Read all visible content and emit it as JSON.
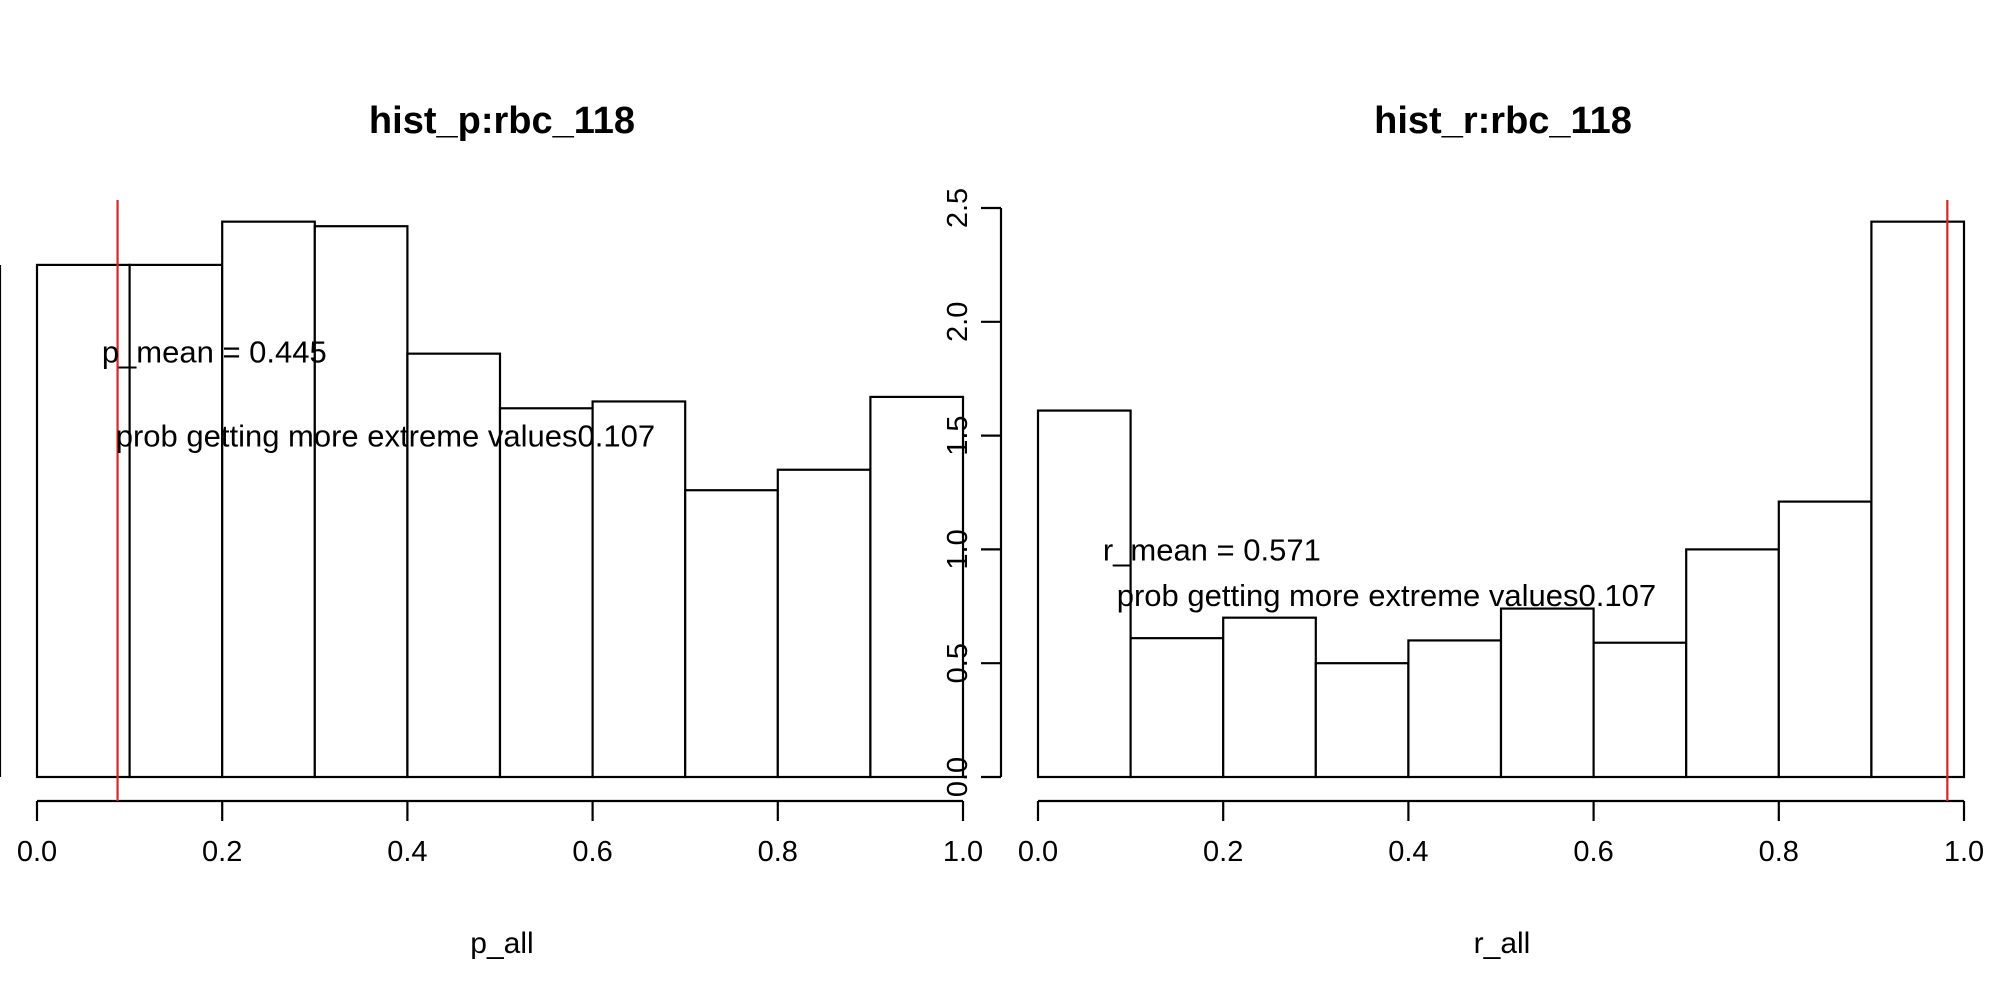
{
  "chart_data": [
    {
      "type": "bar",
      "title": "hist_p:rbc_118",
      "xlabel": "p_all",
      "ylabel": "",
      "xlim": [
        0,
        1
      ],
      "ylim": [
        0,
        2.5
      ],
      "x_ticks": [
        "0.0",
        "0.2",
        "0.4",
        "0.6",
        "0.8",
        "1.0"
      ],
      "y_ticks": [],
      "bins": [
        [
          0.0,
          0.1
        ],
        [
          0.1,
          0.2
        ],
        [
          0.2,
          0.3
        ],
        [
          0.3,
          0.4
        ],
        [
          0.4,
          0.5
        ],
        [
          0.5,
          0.6
        ],
        [
          0.6,
          0.7
        ],
        [
          0.7,
          0.8
        ],
        [
          0.8,
          0.9
        ],
        [
          0.9,
          1.0
        ]
      ],
      "values": [
        2.25,
        2.25,
        2.44,
        2.42,
        1.86,
        1.62,
        1.65,
        1.26,
        1.35,
        1.67
      ],
      "reference_line": {
        "x": 0.087,
        "color": "#d62728"
      },
      "annotations": [
        {
          "text": "p_mean = 0.445",
          "x": 0.07,
          "y": 1.87
        },
        {
          "text": "prob getting more extreme values0.107",
          "x": 0.085,
          "y": 1.5
        }
      ]
    },
    {
      "type": "bar",
      "title": "hist_r:rbc_118",
      "xlabel": "r_all",
      "ylabel": "",
      "xlim": [
        0,
        1
      ],
      "ylim": [
        0,
        2.5
      ],
      "x_ticks": [
        "0.0",
        "0.2",
        "0.4",
        "0.6",
        "0.8",
        "1.0"
      ],
      "y_ticks": [
        "0.0",
        "0.5",
        "1.0",
        "1.5",
        "2.0",
        "2.5"
      ],
      "bins": [
        [
          0.0,
          0.1
        ],
        [
          0.1,
          0.2
        ],
        [
          0.2,
          0.3
        ],
        [
          0.3,
          0.4
        ],
        [
          0.4,
          0.5
        ],
        [
          0.5,
          0.6
        ],
        [
          0.6,
          0.7
        ],
        [
          0.7,
          0.8
        ],
        [
          0.8,
          0.9
        ],
        [
          0.9,
          1.0
        ]
      ],
      "values": [
        1.61,
        0.61,
        0.7,
        0.5,
        0.6,
        0.74,
        0.59,
        1.0,
        1.21,
        2.44
      ],
      "reference_line": {
        "x": 0.982,
        "color": "#d62728"
      },
      "annotations": [
        {
          "text": "r_mean = 0.571",
          "x": 0.07,
          "y": 1.0
        },
        {
          "text": "prob getting more extreme values0.107",
          "x": 0.085,
          "y": 0.8
        }
      ]
    }
  ]
}
